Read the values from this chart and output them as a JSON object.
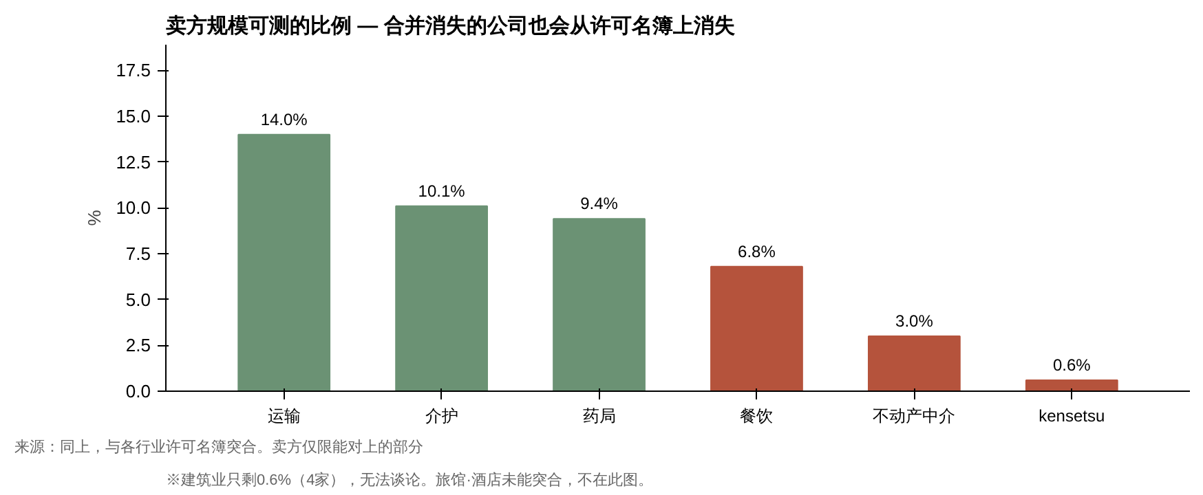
{
  "chart_data": {
    "type": "bar",
    "title": "卖方规模可测的比例 — 合并消失的公司也会从许可名簿上消失",
    "ylabel": "%",
    "categories": [
      "运输",
      "介护",
      "药局",
      "餐饮",
      "不动产中介",
      "kensetsu"
    ],
    "values": [
      14.0,
      10.1,
      9.4,
      6.8,
      3.0,
      0.6
    ],
    "colors": [
      "#6b9274",
      "#6b9274",
      "#6b9274",
      "#b5533c",
      "#b5533c",
      "#b5533c"
    ],
    "value_labels": [
      "14.0%",
      "10.1%",
      "9.4%",
      "6.8%",
      "3.0%",
      "0.6%"
    ],
    "ylim": [
      0,
      18.9
    ],
    "yticks": [
      {
        "value": 0,
        "label": "0.0"
      },
      {
        "value": 2.5,
        "label": "2.5"
      },
      {
        "value": 5,
        "label": "5.0"
      },
      {
        "value": 7.5,
        "label": "7.5"
      },
      {
        "value": 10,
        "label": "10.0"
      },
      {
        "value": 12.5,
        "label": "12.5"
      },
      {
        "value": 15,
        "label": "15.0"
      },
      {
        "value": 17.5,
        "label": "17.5"
      }
    ],
    "grid": false,
    "annotations": [
      "来源：同上，与各行业许可名簿突合。卖方仅限能对上的部分",
      "※建筑业只剩0.6%（4家），无法谈论。旅馆·酒店未能突合，不在此图。"
    ]
  }
}
